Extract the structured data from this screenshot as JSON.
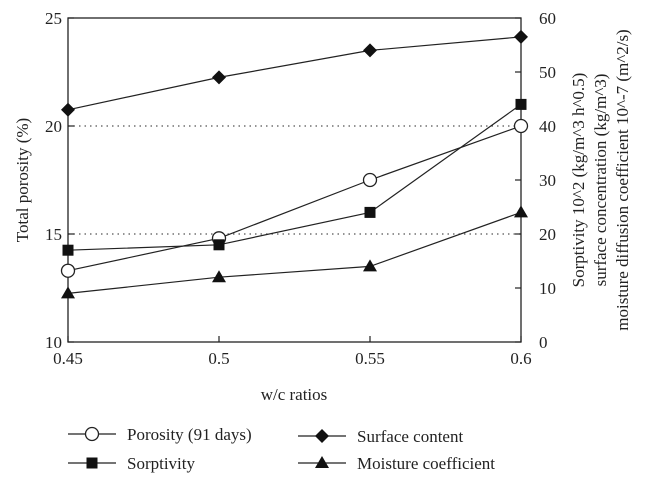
{
  "chart_data": {
    "type": "line",
    "title": "",
    "xlabel": "w/c ratios",
    "ylabel_left": "Total porosity (%)",
    "ylabel_right": [
      "Sorptivity 10^2 (kg/m^3 h^0.5)",
      "surface concentration (kg/m^3)",
      "moisture diffusion coefficient 10^-7 (m^2/s)"
    ],
    "x": [
      0.45,
      0.5,
      0.55,
      0.6
    ],
    "x_tick_labels": [
      "0.45",
      "0.5",
      "0.55",
      "0.6"
    ],
    "ylim_left": [
      10,
      25
    ],
    "y_left_ticks": [
      "10",
      "15",
      "20",
      "25"
    ],
    "ylim_right": [
      0,
      60
    ],
    "y_right_ticks": [
      "0",
      "10",
      "20",
      "30",
      "40",
      "50",
      "60"
    ],
    "grid": "dotted horizontal lines at 15 and 20 (left axis)",
    "legend_position": "bottom",
    "series": [
      {
        "name": "Porosity (91 days)",
        "axis": "left",
        "marker": "open-circle",
        "values": [
          13.3,
          14.8,
          17.5,
          20.0
        ]
      },
      {
        "name": "Surface content",
        "axis": "right",
        "marker": "diamond",
        "values": [
          43,
          49,
          54,
          56.5
        ]
      },
      {
        "name": "Sorptivity",
        "axis": "right",
        "marker": "square",
        "values": [
          17,
          18,
          24,
          44
        ]
      },
      {
        "name": "Moisture coefficient",
        "axis": "right",
        "marker": "triangle",
        "values": [
          9,
          12,
          14,
          24
        ]
      }
    ]
  }
}
